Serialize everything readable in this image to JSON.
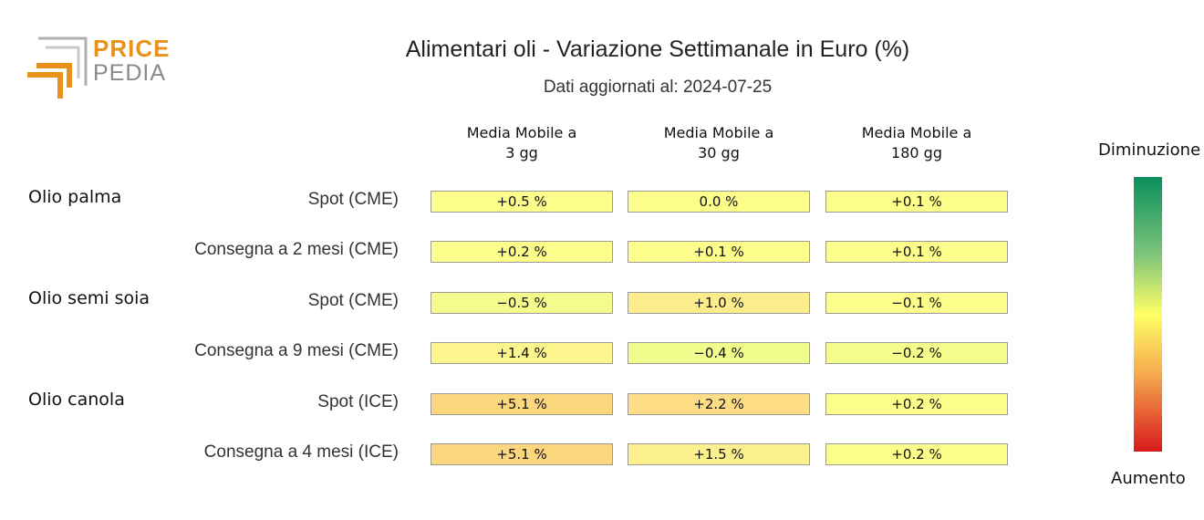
{
  "logo": {
    "price": "PRICE",
    "pedia": "PEDIA"
  },
  "title": "Alimentari oli - Variazione Settimanale in Euro (%)",
  "subtitle": "Dati aggiornati al: 2024-07-25",
  "legend": {
    "top": "Diminuzione",
    "bottom": "Aumento"
  },
  "chart_data": {
    "type": "heatmap",
    "title": "Alimentari oli - Variazione Settimanale in Euro (%)",
    "columns": [
      {
        "line1": "Media Mobile a",
        "line2": "3 gg"
      },
      {
        "line1": "Media Mobile a",
        "line2": "30 gg"
      },
      {
        "line1": "Media Mobile a",
        "line2": "180 gg"
      }
    ],
    "groups": [
      "Olio palma",
      "Olio semi soia",
      "Olio canola"
    ],
    "rows": [
      {
        "group": "Olio palma",
        "label": "Spot (CME)",
        "values": [
          0.5,
          0.0,
          0.1
        ],
        "display": [
          "+0.5 %",
          "0.0 %",
          "+0.1 %"
        ],
        "colors": [
          "#fdfd8c",
          "#fdfd8c",
          "#fdfd8c"
        ]
      },
      {
        "group": "Olio palma",
        "label": "Consegna a 2 mesi (CME)",
        "values": [
          0.2,
          0.1,
          0.1
        ],
        "display": [
          "+0.2 %",
          "+0.1 %",
          "+0.1 %"
        ],
        "colors": [
          "#fdfd8c",
          "#fdfd8c",
          "#fdfd8c"
        ]
      },
      {
        "group": "Olio semi soia",
        "label": "Spot (CME)",
        "values": [
          -0.5,
          1.0,
          -0.1
        ],
        "display": [
          "−0.5 %",
          "+1.0 %",
          "−0.1 %"
        ],
        "colors": [
          "#f4fc8c",
          "#fcec8c",
          "#fdfd8c"
        ]
      },
      {
        "group": "Olio semi soia",
        "label": "Consegna a 9 mesi (CME)",
        "values": [
          1.4,
          -0.4,
          -0.2
        ],
        "display": [
          "+1.4 %",
          "−0.4 %",
          "−0.2 %"
        ],
        "colors": [
          "#fcf48c",
          "#f0fc8c",
          "#f4fc8c"
        ]
      },
      {
        "group": "Olio canola",
        "label": "Spot (ICE)",
        "values": [
          5.1,
          2.2,
          0.2
        ],
        "display": [
          "+5.1 %",
          "+2.2 %",
          "+0.2 %"
        ],
        "colors": [
          "#fcd67c",
          "#fcdc84",
          "#fdfd8c"
        ]
      },
      {
        "group": "Olio canola",
        "label": "Consegna a 4 mesi (ICE)",
        "values": [
          5.1,
          1.5,
          0.2
        ],
        "display": [
          "+5.1 %",
          "+1.5 %",
          "+0.2 %"
        ],
        "colors": [
          "#fcd67c",
          "#fcf08c",
          "#fdfd8c"
        ]
      }
    ],
    "color_scale": {
      "low_label": "Diminuzione",
      "high_label": "Aumento",
      "low_color": "#0a8f5c",
      "mid_color": "#ffff66",
      "high_color": "#d7191c"
    }
  }
}
